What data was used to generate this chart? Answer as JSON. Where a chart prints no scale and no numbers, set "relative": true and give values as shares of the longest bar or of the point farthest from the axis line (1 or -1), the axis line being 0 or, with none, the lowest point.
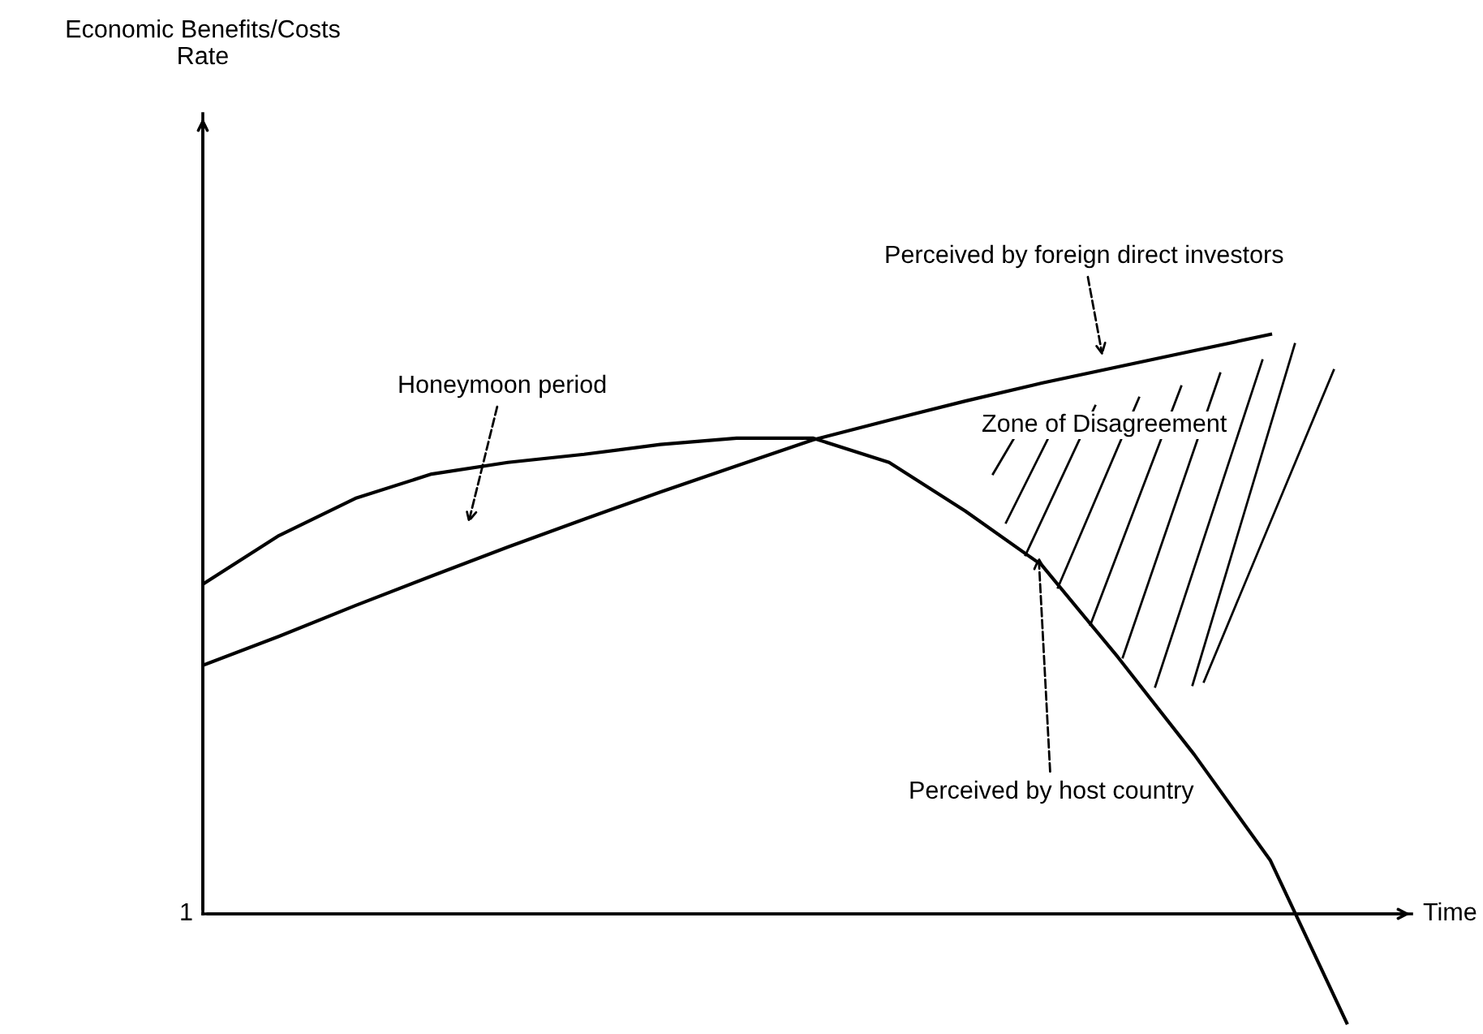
{
  "chart_data": {
    "type": "line",
    "relative": true,
    "xlabel": "Time",
    "categories": [
      null,
      null,
      null,
      null,
      null,
      null,
      null,
      null,
      null,
      null,
      null,
      null,
      null,
      null,
      null,
      null
    ],
    "series": [
      {
        "name": "Perceived by host country",
        "color": "#000000",
        "values": [
          0.569,
          0.653,
          0.717,
          0.759,
          0.779,
          0.793,
          0.81,
          0.821,
          0.821,
          0.779,
          0.695,
          0.602,
          0.443,
          0.275,
          0.092,
          -0.188
        ]
      },
      {
        "name": "Perceived by foreign direct investors",
        "color": "#000000",
        "values": [
          0.429,
          0.479,
          0.532,
          0.583,
          0.633,
          0.681,
          0.728,
          0.773,
          0.818,
          0.852,
          0.885,
          0.916,
          0.944,
          0.972,
          1.0,
          null
        ]
      }
    ],
    "annotations": [
      "Honeymoon period",
      "Zone of Disagreement",
      "1",
      "Economic Benefits/Costs\nRate"
    ],
    "marker": "none",
    "line_style": "solid",
    "legend": false,
    "grid": false
  }
}
